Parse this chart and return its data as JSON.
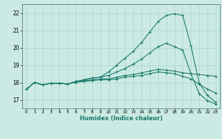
{
  "xlabel": "Humidex (Indice chaleur)",
  "bg_color": "#cceae4",
  "grid_color": "#aad4ce",
  "line_color": "#1a7a6a",
  "xlim": [
    -0.5,
    23.5
  ],
  "ylim": [
    16.5,
    22.5
  ],
  "xticks": [
    0,
    1,
    2,
    3,
    4,
    5,
    6,
    7,
    8,
    9,
    10,
    11,
    12,
    13,
    14,
    15,
    16,
    17,
    18,
    19,
    20,
    21,
    22,
    23
  ],
  "yticks": [
    17,
    18,
    19,
    20,
    21,
    22
  ],
  "line1_x": [
    0,
    1,
    2,
    3,
    4,
    5,
    6,
    7,
    8,
    9,
    10,
    11,
    12,
    13,
    14,
    15,
    16,
    17,
    18,
    19,
    20,
    21,
    22,
    23
  ],
  "line1_y": [
    17.6,
    18.0,
    17.85,
    17.95,
    17.95,
    17.9,
    18.05,
    18.1,
    18.15,
    18.2,
    18.2,
    18.3,
    18.4,
    18.45,
    18.55,
    18.65,
    18.75,
    18.7,
    18.65,
    18.55,
    18.5,
    18.45,
    18.4,
    18.35
  ],
  "line2_x": [
    0,
    1,
    2,
    3,
    4,
    5,
    6,
    7,
    8,
    9,
    10,
    11,
    12,
    13,
    14,
    15,
    16,
    17,
    18,
    19,
    20,
    21,
    22,
    23
  ],
  "line2_y": [
    17.6,
    18.0,
    17.85,
    17.95,
    17.95,
    17.9,
    18.05,
    18.15,
    18.25,
    18.3,
    18.6,
    19.0,
    19.4,
    19.8,
    20.3,
    20.9,
    21.5,
    21.85,
    21.95,
    21.85,
    20.1,
    17.95,
    17.25,
    16.85
  ],
  "line3_x": [
    0,
    1,
    2,
    3,
    4,
    5,
    6,
    7,
    8,
    9,
    10,
    11,
    12,
    13,
    14,
    15,
    16,
    17,
    18,
    19,
    20,
    21,
    22,
    23
  ],
  "line3_y": [
    17.6,
    18.0,
    17.85,
    17.95,
    17.95,
    17.9,
    18.05,
    18.15,
    18.25,
    18.3,
    18.4,
    18.6,
    18.8,
    19.05,
    19.35,
    19.7,
    20.05,
    20.25,
    20.05,
    19.85,
    18.5,
    17.35,
    16.95,
    16.75
  ],
  "line4_x": [
    0,
    1,
    2,
    3,
    4,
    5,
    6,
    7,
    8,
    9,
    10,
    11,
    12,
    13,
    14,
    15,
    16,
    17,
    18,
    19,
    20,
    21,
    22,
    23
  ],
  "line4_y": [
    17.6,
    18.0,
    17.85,
    17.95,
    17.95,
    17.9,
    18.0,
    18.05,
    18.1,
    18.15,
    18.15,
    18.2,
    18.3,
    18.35,
    18.4,
    18.5,
    18.6,
    18.55,
    18.5,
    18.35,
    18.2,
    17.9,
    17.6,
    17.4
  ]
}
